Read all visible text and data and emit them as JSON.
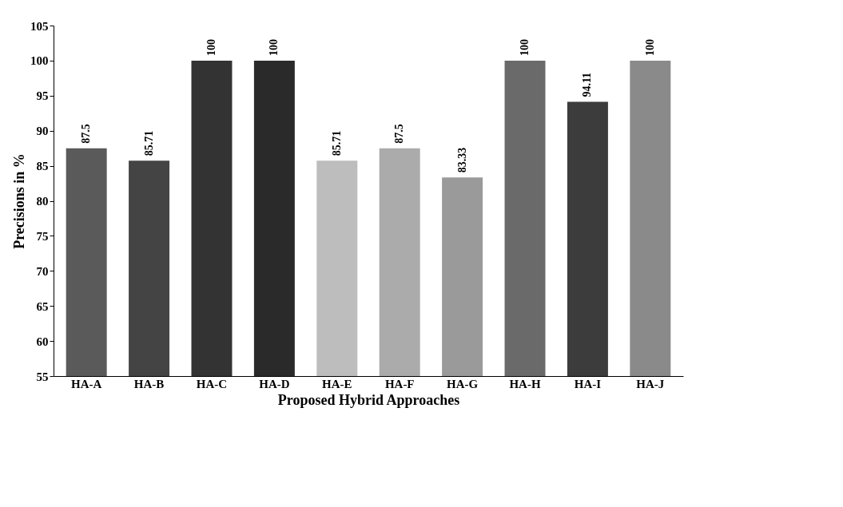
{
  "chart_data": {
    "type": "bar",
    "xlabel": "Proposed Hybrid Approaches",
    "ylabel": "Precisions in %",
    "categories": [
      "HA-A",
      "HA-B",
      "HA-C",
      "HA-D",
      "HA-E",
      "HA-F",
      "HA-G",
      "HA-H",
      "HA-I",
      "HA-J"
    ],
    "values": [
      87.5,
      85.71,
      100,
      100,
      85.71,
      87.5,
      83.33,
      100,
      94.11,
      100
    ],
    "colors": [
      "#5a5a5a",
      "#444444",
      "#333333",
      "#2a2a2a",
      "#bdbdbd",
      "#ababab",
      "#9a9a9a",
      "#6a6a6a",
      "#3c3c3c",
      "#8a8a8a"
    ],
    "ylim": [
      55,
      105
    ],
    "yticks": [
      55,
      60,
      65,
      70,
      75,
      80,
      85,
      90,
      95,
      100,
      105
    ],
    "grid": false,
    "data_labels": true
  }
}
